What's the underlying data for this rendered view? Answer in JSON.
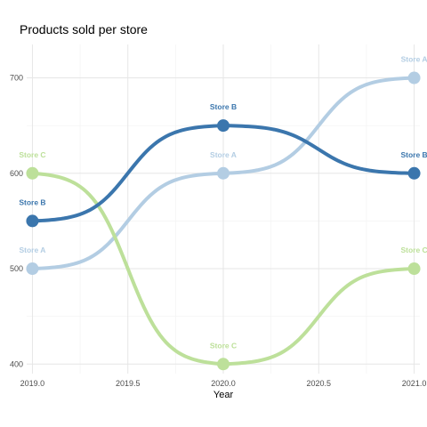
{
  "chart_data": {
    "type": "line",
    "title": "Products sold per store",
    "xlabel": "Year",
    "ylabel": "",
    "x": [
      2019,
      2020,
      2021
    ],
    "xlim": [
      2018.97,
      2021.03
    ],
    "ylim": [
      390,
      735
    ],
    "x_ticks": [
      "2019.0",
      "2019.5",
      "2020.0",
      "2020.5",
      "2021.0"
    ],
    "x_tick_values": [
      2019.0,
      2019.5,
      2020.0,
      2020.5,
      2021.0
    ],
    "y_ticks": [
      "400",
      "500",
      "600",
      "700"
    ],
    "y_tick_values": [
      400,
      500,
      600,
      700
    ],
    "grid": true,
    "legend": "none",
    "series": [
      {
        "name": "Store A",
        "values": [
          500,
          600,
          700
        ],
        "color": "#b3cde3"
      },
      {
        "name": "Store B",
        "values": [
          550,
          650,
          600
        ],
        "color": "#3b76ad"
      },
      {
        "name": "Store C",
        "values": [
          600,
          400,
          500
        ],
        "color": "#bde09a"
      }
    ]
  }
}
